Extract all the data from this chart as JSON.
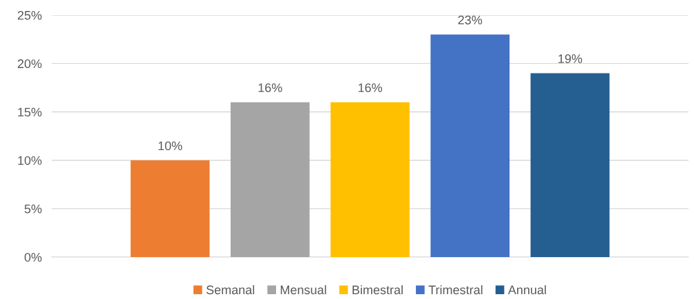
{
  "chart_data": {
    "type": "bar",
    "categories": [
      null
    ],
    "series": [
      {
        "name": "Semanal",
        "color": "#ed7d31",
        "values": [
          10
        ],
        "value_labels": [
          "10%"
        ]
      },
      {
        "name": "Mensual",
        "color": "#a5a5a5",
        "values": [
          16
        ],
        "value_labels": [
          "16%"
        ]
      },
      {
        "name": "Bimestral",
        "color": "#ffc000",
        "values": [
          16
        ],
        "value_labels": [
          "16%"
        ]
      },
      {
        "name": "Trimestral",
        "color": "#4472c4",
        "values": [
          23
        ],
        "value_labels": [
          "23%"
        ]
      },
      {
        "name": "Annual",
        "color": "#255e91",
        "values": [
          19
        ],
        "value_labels": [
          "19%"
        ]
      }
    ],
    "ylim": [
      0,
      25
    ],
    "yticks": [
      {
        "value": 0,
        "label": "0%"
      },
      {
        "value": 5,
        "label": "5%"
      },
      {
        "value": 10,
        "label": "10%"
      },
      {
        "value": 15,
        "label": "15%"
      },
      {
        "value": 20,
        "label": "20%"
      },
      {
        "value": 25,
        "label": "25%"
      }
    ],
    "grid": "y",
    "legend": "bottom"
  }
}
